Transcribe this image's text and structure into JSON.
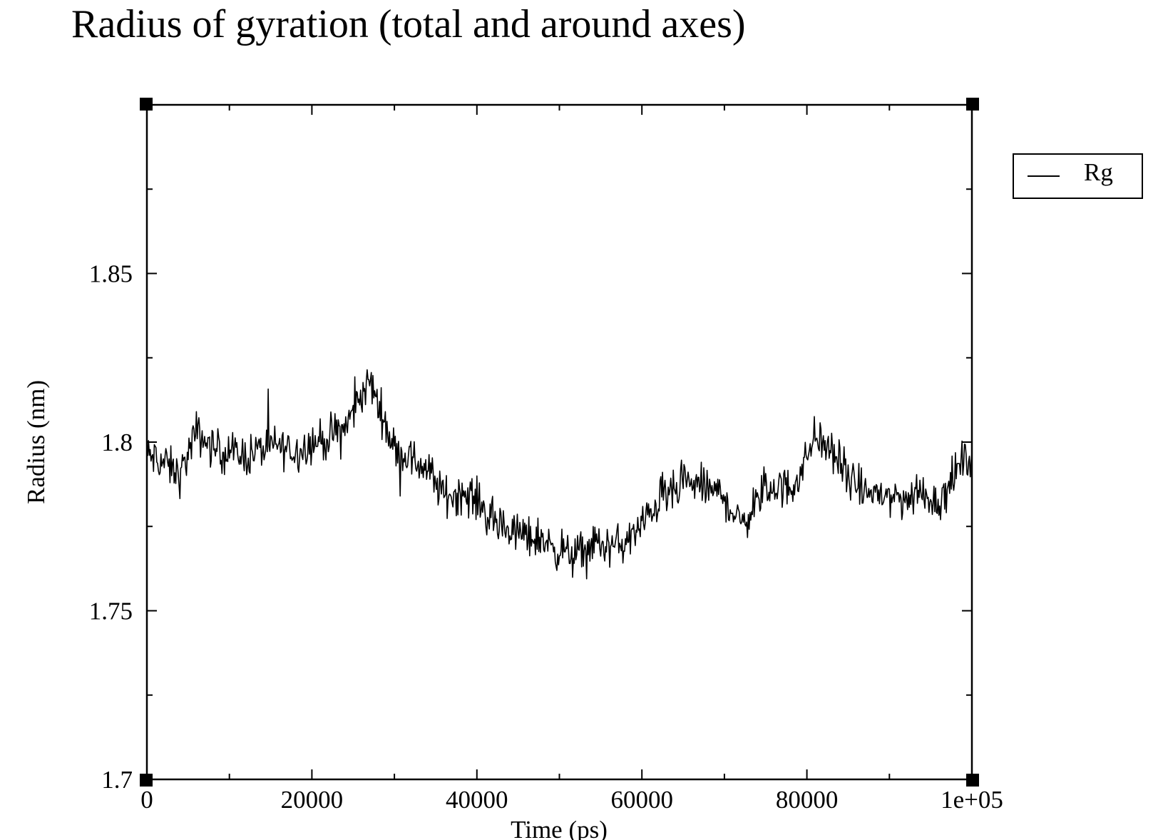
{
  "chart_data": {
    "type": "line",
    "title": "Radius of gyration (total and around axes)",
    "xlabel": "Time (ps)",
    "ylabel": "Radius (nm)",
    "xlim": [
      0,
      100000
    ],
    "ylim": [
      1.7,
      1.9
    ],
    "x_ticks": [
      0,
      20000,
      40000,
      60000,
      80000,
      100000
    ],
    "x_tick_labels": [
      "0",
      "20000",
      "40000",
      "60000",
      "80000",
      "1e+05"
    ],
    "y_ticks": [
      1.7,
      1.75,
      1.8,
      1.85
    ],
    "y_tick_labels": [
      "1.7",
      "1.75",
      "1.8",
      "1.85"
    ],
    "x_minor_step": 10000,
    "y_minor_step": 0.025,
    "grid": false,
    "legend_position": "top-right, outside plot",
    "series": [
      {
        "name": "Rg",
        "color": "#000000",
        "sample_step_ps": 100,
        "noise_amplitude_nm": 0.009,
        "trend_x": [
          0,
          2000,
          4000,
          6000,
          8000,
          10000,
          12000,
          14000,
          16000,
          18000,
          20000,
          22000,
          24000,
          26000,
          27000,
          28000,
          30000,
          32000,
          34000,
          36000,
          38000,
          40000,
          42000,
          44000,
          46000,
          48000,
          50000,
          52000,
          54000,
          56000,
          58000,
          60000,
          62000,
          64000,
          66000,
          68000,
          70000,
          72000,
          74000,
          76000,
          78000,
          80000,
          81000,
          82000,
          84000,
          86000,
          88000,
          90000,
          92000,
          94000,
          96000,
          98000,
          100000
        ],
        "trend_y": [
          1.796,
          1.794,
          1.79,
          1.803,
          1.798,
          1.797,
          1.796,
          1.798,
          1.799,
          1.797,
          1.8,
          1.801,
          1.804,
          1.814,
          1.818,
          1.812,
          1.798,
          1.795,
          1.792,
          1.784,
          1.785,
          1.783,
          1.776,
          1.774,
          1.772,
          1.771,
          1.768,
          1.766,
          1.77,
          1.769,
          1.77,
          1.775,
          1.783,
          1.785,
          1.788,
          1.786,
          1.784,
          1.775,
          1.783,
          1.787,
          1.786,
          1.795,
          1.803,
          1.799,
          1.794,
          1.786,
          1.785,
          1.784,
          1.783,
          1.785,
          1.782,
          1.791,
          1.797
        ]
      }
    ]
  }
}
